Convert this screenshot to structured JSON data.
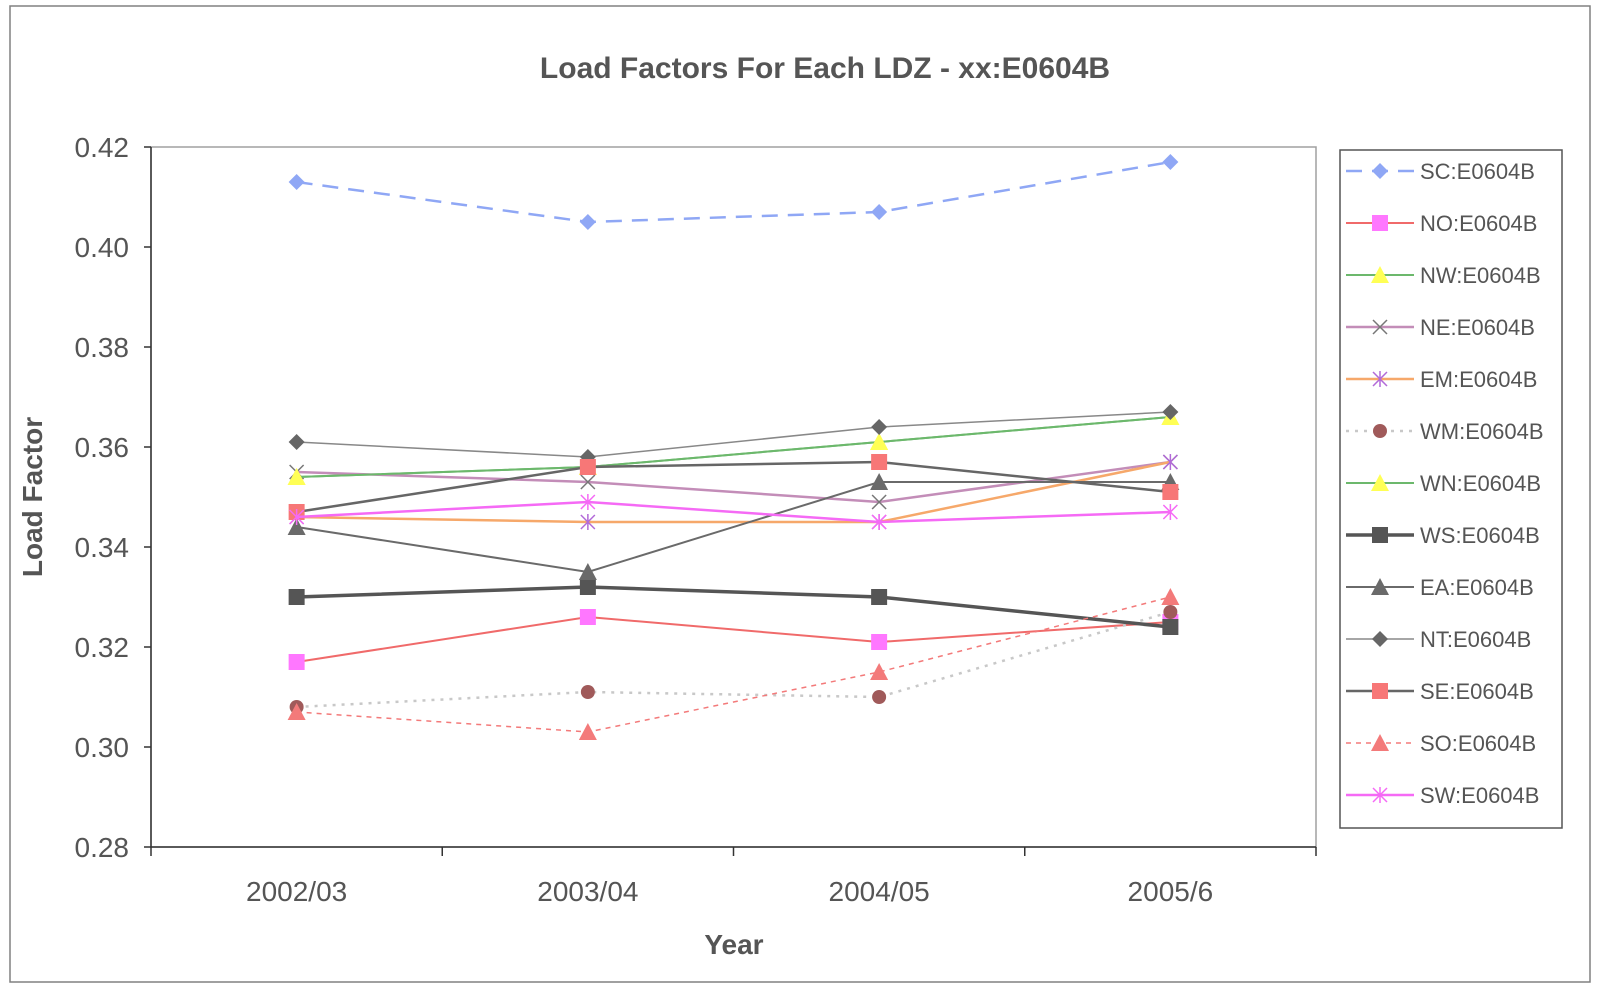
{
  "chart_data": {
    "type": "line",
    "title": "Load Factors For Each LDZ - xx:E0604B",
    "xlabel": "Year",
    "ylabel": "Load Factor",
    "categories": [
      "2002/03",
      "2003/04",
      "2004/05",
      "2005/6"
    ],
    "ylim": [
      0.28,
      0.42
    ],
    "yticks": [
      "0.42",
      "0.40",
      "0.38",
      "0.36",
      "0.34",
      "0.32",
      "0.30",
      "0.28"
    ],
    "grid": false,
    "legend_position": "right",
    "series": [
      {
        "name": "SC:E0604B",
        "values": [
          0.413,
          0.405,
          0.407,
          0.417
        ],
        "color": "#8fa7f5",
        "marker": "diamond",
        "dash": "long-dash",
        "width": 2.5
      },
      {
        "name": "NO:E0604B",
        "values": [
          0.317,
          0.326,
          0.321,
          0.325
        ],
        "color": "#f06a6a",
        "marker": "square",
        "marker_color": "#ff77ff",
        "dash": "solid",
        "width": 2
      },
      {
        "name": "NW:E0604B",
        "values": [
          0.354,
          0.356,
          0.361,
          0.366
        ],
        "color": "#6cb86c",
        "marker": "triangle",
        "marker_color": "#ffff55",
        "dash": "solid",
        "width": 2
      },
      {
        "name": "NE:E0604B",
        "values": [
          0.355,
          0.353,
          0.349,
          0.357
        ],
        "color": "#c38db8",
        "marker": "x",
        "marker_color": "#777777",
        "dash": "solid",
        "width": 2.5
      },
      {
        "name": "EM:E0604B",
        "values": [
          0.346,
          0.345,
          0.345,
          0.357
        ],
        "color": "#f6a86a",
        "marker": "star",
        "marker_color": "#b26ad8",
        "dash": "solid",
        "width": 2.5
      },
      {
        "name": "WM:E0604B",
        "values": [
          0.308,
          0.311,
          0.31,
          0.327
        ],
        "color": "#c8c8c8",
        "marker": "circle",
        "marker_color": "#a05a5a",
        "dash": "dotted",
        "width": 2.5
      },
      {
        "name": "WN:E0604B",
        "values": [
          0.354,
          0.356,
          0.361,
          0.366
        ],
        "color": "#6cb86c",
        "marker": "triangle",
        "marker_color": "#ffff55",
        "dash": "solid",
        "width": 2
      },
      {
        "name": "WS:E0604B",
        "values": [
          0.33,
          0.332,
          0.33,
          0.324
        ],
        "color": "#555555",
        "marker": "square",
        "marker_color": "#555555",
        "dash": "solid",
        "width": 3.5
      },
      {
        "name": "EA:E0604B",
        "values": [
          0.344,
          0.335,
          0.353,
          0.353
        ],
        "color": "#6a6a6a",
        "marker": "triangle",
        "marker_color": "#6a6a6a",
        "dash": "solid",
        "width": 2
      },
      {
        "name": "NT:E0604B",
        "values": [
          0.361,
          0.358,
          0.364,
          0.367
        ],
        "color": "#888888",
        "marker": "diamond",
        "marker_color": "#666666",
        "dash": "solid",
        "width": 1.5
      },
      {
        "name": "SE:E0604B",
        "values": [
          0.347,
          0.356,
          0.357,
          0.351
        ],
        "color": "#666666",
        "marker": "square",
        "marker_color": "#f77777",
        "dash": "solid",
        "width": 2.5
      },
      {
        "name": "SO:E0604B",
        "values": [
          0.307,
          0.303,
          0.315,
          0.33
        ],
        "color": "#f37a7a",
        "marker": "triangle",
        "marker_color": "#f37a7a",
        "dash": "short-dash",
        "width": 1.5
      },
      {
        "name": "SW:E0604B",
        "values": [
          0.346,
          0.349,
          0.345,
          0.347
        ],
        "color": "#f56af5",
        "marker": "star",
        "marker_color": "#f56af5",
        "dash": "solid",
        "width": 2.5
      }
    ]
  }
}
